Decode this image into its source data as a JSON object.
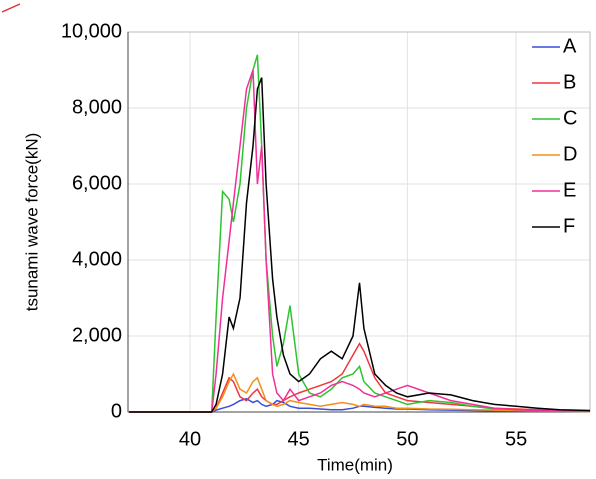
{
  "chart_data": {
    "type": "line",
    "x_label": "Time(min)",
    "y_label": "tsunami wave force(kN)",
    "x": [
      37.2,
      41,
      41.2,
      41.5,
      41.8,
      42,
      42.3,
      42.6,
      42.9,
      43.1,
      43.3,
      43.5,
      43.8,
      44,
      44.3,
      44.6,
      45,
      45.5,
      46,
      46.5,
      47,
      47.5,
      47.8,
      48,
      48.5,
      49,
      49.5,
      50,
      51,
      52,
      53,
      54,
      55,
      56,
      57,
      58.4
    ],
    "series": [
      {
        "name": "A",
        "color": "#3a4fd8",
        "values": [
          0,
          0,
          50,
          100,
          150,
          200,
          300,
          350,
          250,
          300,
          200,
          150,
          200,
          300,
          250,
          150,
          100,
          100,
          80,
          60,
          60,
          100,
          150,
          150,
          120,
          100,
          80,
          80,
          60,
          50,
          40,
          30,
          30,
          20,
          20,
          10
        ]
      },
      {
        "name": "B",
        "color": "#f0383c",
        "values": [
          0,
          0,
          100,
          500,
          900,
          800,
          400,
          300,
          500,
          600,
          400,
          300,
          200,
          200,
          300,
          400,
          500,
          600,
          700,
          800,
          1000,
          1500,
          1800,
          1600,
          900,
          500,
          400,
          300,
          250,
          200,
          150,
          100,
          80,
          60,
          40,
          30
        ]
      },
      {
        "name": "C",
        "color": "#2ec42e",
        "values": [
          0,
          0,
          2500,
          5800,
          5600,
          5000,
          6000,
          8000,
          9000,
          9400,
          7000,
          4000,
          2000,
          1200,
          1800,
          2800,
          1000,
          500,
          400,
          600,
          900,
          1000,
          1200,
          800,
          500,
          400,
          300,
          200,
          300,
          250,
          150,
          80,
          50,
          40,
          30,
          20
        ]
      },
      {
        "name": "D",
        "color": "#f39019",
        "values": [
          0,
          0,
          100,
          400,
          800,
          1000,
          600,
          500,
          800,
          900,
          600,
          300,
          200,
          150,
          200,
          300,
          250,
          200,
          150,
          200,
          250,
          200,
          150,
          200,
          150,
          150,
          100,
          100,
          80,
          70,
          60,
          50,
          40,
          30,
          20,
          10
        ]
      },
      {
        "name": "E",
        "color": "#f0309a",
        "values": [
          0,
          0,
          1000,
          3000,
          4500,
          5500,
          7000,
          8500,
          9000,
          6000,
          7000,
          4000,
          1000,
          500,
          300,
          600,
          300,
          400,
          500,
          700,
          800,
          700,
          600,
          500,
          400,
          500,
          600,
          700,
          500,
          300,
          200,
          100,
          60,
          40,
          30,
          20
        ]
      },
      {
        "name": "F",
        "color": "#000000",
        "values": [
          0,
          0,
          200,
          1000,
          2500,
          2200,
          3000,
          5500,
          7000,
          8500,
          8800,
          6000,
          3500,
          2500,
          1500,
          1000,
          800,
          1000,
          1400,
          1600,
          1400,
          2000,
          3400,
          2200,
          1000,
          700,
          500,
          400,
          500,
          450,
          300,
          200,
          150,
          100,
          60,
          40
        ]
      }
    ],
    "xlim": [
      37.15,
      58.4
    ],
    "ylim": [
      0,
      10000
    ],
    "xticks": [
      40,
      45,
      50,
      55
    ],
    "yticks": [
      0,
      {
        "value": 2000,
        "label": "2,000"
      },
      {
        "value": 4000,
        "label": "4,000"
      },
      {
        "value": 6000,
        "label": "6,000"
      },
      {
        "value": 8000,
        "label": "8,000"
      },
      {
        "value": 10000,
        "label": "10,000"
      }
    ],
    "grid": true,
    "legend": "top-right"
  }
}
